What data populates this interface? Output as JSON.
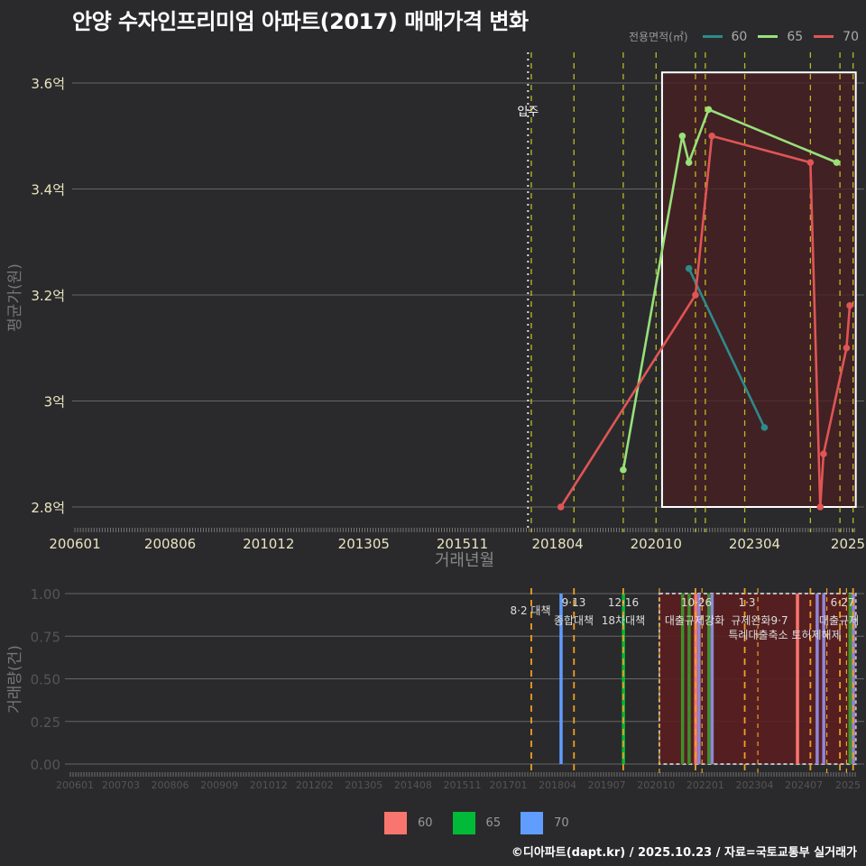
{
  "title": "안양 수자인프리미엄 아파트(2017) 매매가격 변화",
  "legend_top": {
    "title": "전용면적(㎡)",
    "items": [
      {
        "label": "60",
        "color": "#2e8b8b"
      },
      {
        "label": "65",
        "color": "#98e07a"
      },
      {
        "label": "70",
        "color": "#e05555"
      }
    ]
  },
  "legend_bottom": {
    "items": [
      {
        "label": "60",
        "color": "#f8766d"
      },
      {
        "label": "65",
        "color": "#00ba38"
      },
      {
        "label": "70",
        "color": "#619cff"
      }
    ]
  },
  "footer": "©디아파트(dapt.kr) / 2025.10.23 / 자료=국토교통부 실거래가",
  "chart_data": [
    {
      "type": "line",
      "title": "안양 수자인프리미엄 아파트(2017) 매매가격 변화",
      "xlabel": "거래년월",
      "ylabel": "평균가(원)",
      "x_ticks": [
        "200601",
        "200806",
        "201012",
        "201305",
        "201511",
        "201804",
        "202010",
        "202304",
        "2025"
      ],
      "y_ticks": [
        "2.8억",
        "3억",
        "3.2억",
        "3.4억",
        "3.6억"
      ],
      "ylim": [
        2.76,
        3.66
      ],
      "grid": true,
      "legend_position": "top-right",
      "annotations": [
        {
          "text": "입주",
          "x": "201707",
          "style": "dotted-white"
        }
      ],
      "highlight_box": {
        "from": "202011",
        "to": "202510",
        "ymin": 2.8,
        "ymax": 3.62
      },
      "policy_lines_x": [
        "201708",
        "201809",
        "201912",
        "202010",
        "202110",
        "202201",
        "202301",
        "202409",
        "202506",
        "202510"
      ],
      "series": [
        {
          "name": "60",
          "color": "#2e8b8b",
          "points": [
            {
              "x": "202108",
              "y": 3.25
            },
            {
              "x": "202307",
              "y": 2.95
            }
          ]
        },
        {
          "name": "65",
          "color": "#98e07a",
          "points": [
            {
              "x": "201912",
              "y": 2.87
            },
            {
              "x": "202106",
              "y": 3.5
            },
            {
              "x": "202108",
              "y": 3.45
            },
            {
              "x": "202202",
              "y": 3.55
            },
            {
              "x": "202505",
              "y": 3.45
            }
          ]
        },
        {
          "name": "70",
          "color": "#e05555",
          "points": [
            {
              "x": "201805",
              "y": 2.8
            },
            {
              "x": "202110",
              "y": 3.2
            },
            {
              "x": "202203",
              "y": 3.5
            },
            {
              "x": "202409",
              "y": 3.45
            },
            {
              "x": "202412",
              "y": 2.8
            },
            {
              "x": "202501",
              "y": 2.9
            },
            {
              "x": "202508",
              "y": 3.1
            },
            {
              "x": "202509",
              "y": 3.18
            }
          ]
        }
      ]
    },
    {
      "type": "bar",
      "title": "",
      "xlabel": "",
      "ylabel": "거래량(건)",
      "x_ticks": [
        "200601",
        "200703",
        "200806",
        "200909",
        "201012",
        "201202",
        "201305",
        "201408",
        "201511",
        "201701",
        "201804",
        "201907",
        "202010",
        "202201",
        "202304",
        "202407",
        "2025"
      ],
      "y_ticks": [
        "0.00",
        "0.25",
        "0.50",
        "0.75",
        "1.00"
      ],
      "ylim": [
        0,
        1.0
      ],
      "grid": true,
      "legend_position": "bottom",
      "policy_annotations": [
        {
          "x": "201708",
          "text": "8·2 대책"
        },
        {
          "x": "201809",
          "text": "9·13 종합대책"
        },
        {
          "x": "201912",
          "text": "12·16 18차대책"
        },
        {
          "x": "202110",
          "text": "10·26 대출규제강화"
        },
        {
          "x": "202301",
          "text": "1·3 규제완화"
        },
        {
          "x": "202409",
          "text": "9·7 특례대출축소"
        },
        {
          "x": "202506",
          "text": "6·27 대출규제"
        },
        {
          "x": "202510",
          "text": "토허제해제"
        }
      ],
      "series": [
        {
          "name": "60",
          "color": "#f8766d",
          "bars": [
            {
              "x": "202110",
              "y": 1
            },
            {
              "x": "202405",
              "y": 1
            }
          ]
        },
        {
          "name": "65",
          "color": "#00ba38",
          "bars": [
            {
              "x": "201912",
              "y": 1
            },
            {
              "x": "202106",
              "y": 1
            },
            {
              "x": "202108",
              "y": 1
            },
            {
              "x": "202202",
              "y": 1
            },
            {
              "x": "202509",
              "y": 1
            }
          ]
        },
        {
          "name": "70",
          "color": "#619cff",
          "bars": [
            {
              "x": "201805",
              "y": 1
            },
            {
              "x": "202111",
              "y": 1
            },
            {
              "x": "202203",
              "y": 1
            },
            {
              "x": "202411",
              "y": 1
            },
            {
              "x": "202501",
              "y": 1
            },
            {
              "x": "202510",
              "y": 1
            }
          ]
        }
      ]
    }
  ]
}
